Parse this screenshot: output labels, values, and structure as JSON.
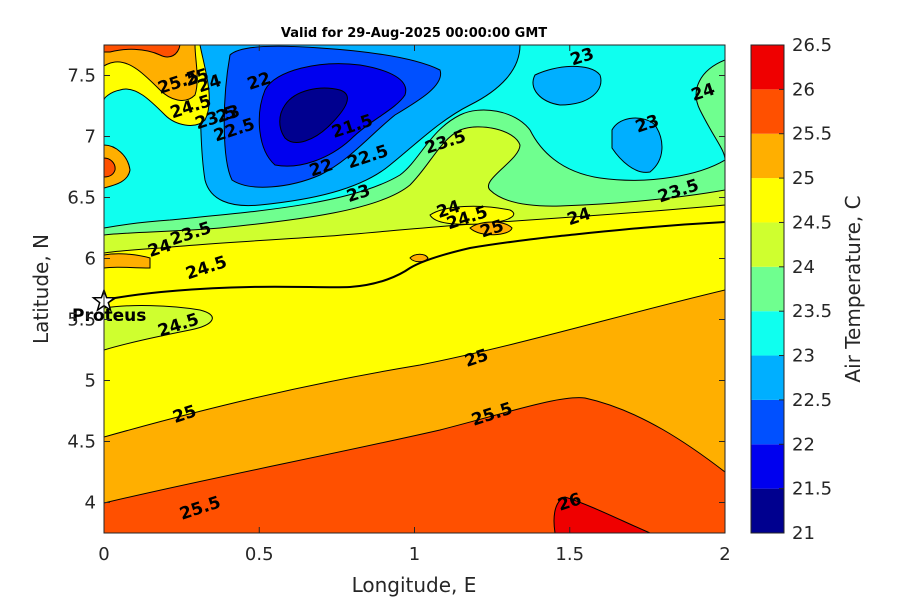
{
  "chart_data": {
    "type": "contour",
    "title": "Valid for 29-Aug-2025 00:00:00 GMT",
    "xlabel": "Longitude, E",
    "ylabel": "Latitude, N",
    "colorbar_label": "Air Temperature, C",
    "xlim": [
      0,
      2
    ],
    "ylim": [
      3.75,
      7.75
    ],
    "x_ticks": [
      0,
      0.5,
      1,
      1.5,
      2
    ],
    "x_tick_labels": [
      "0",
      "0.5",
      "1",
      "1.5",
      "2"
    ],
    "y_ticks": [
      4,
      4.5,
      5,
      5.5,
      6,
      6.5,
      7,
      7.5
    ],
    "y_tick_labels": [
      "4",
      "4.5",
      "5",
      "5.5",
      "6",
      "6.5",
      "7",
      "7.5"
    ],
    "levels": [
      21,
      21.5,
      22,
      22.5,
      23,
      23.5,
      24,
      24.5,
      25,
      25.5,
      26,
      26.5
    ],
    "level_labels": [
      "21",
      "21.5",
      "22",
      "22.5",
      "23",
      "23.5",
      "24",
      "24.5",
      "25",
      "25.5",
      "26",
      "26.5"
    ],
    "colormap": [
      "#00008F",
      "#0000EF",
      "#0050FF",
      "#00AFFF",
      "#0FFFEF",
      "#6FFF8F",
      "#CFFF2F",
      "#FFFF00",
      "#FFAF00",
      "#FF5000",
      "#EF0000",
      "#AF0000"
    ],
    "grid": false,
    "marker": {
      "name": "Proteus",
      "lon": 0.0,
      "lat": 5.65,
      "symbol": "star"
    },
    "contour_labels": [
      {
        "text": "25.5",
        "lon": 0.24,
        "lat": 7.44
      },
      {
        "text": "25",
        "lon": 0.3,
        "lat": 7.48
      },
      {
        "text": "24",
        "lon": 0.34,
        "lat": 7.43
      },
      {
        "text": "24.5",
        "lon": 0.28,
        "lat": 7.24
      },
      {
        "text": "23.5",
        "lon": 0.36,
        "lat": 7.15
      },
      {
        "text": "23",
        "lon": 0.4,
        "lat": 7.18
      },
      {
        "text": "22.5",
        "lon": 0.42,
        "lat": 7.05
      },
      {
        "text": "22",
        "lon": 0.5,
        "lat": 7.45
      },
      {
        "text": "21.5",
        "lon": 0.8,
        "lat": 7.08
      },
      {
        "text": "22",
        "lon": 0.7,
        "lat": 6.74
      },
      {
        "text": "22.5",
        "lon": 0.85,
        "lat": 6.83
      },
      {
        "text": "23",
        "lon": 0.82,
        "lat": 6.53
      },
      {
        "text": "23.5",
        "lon": 1.1,
        "lat": 6.95
      },
      {
        "text": "23",
        "lon": 1.54,
        "lat": 7.65
      },
      {
        "text": "23",
        "lon": 1.75,
        "lat": 7.1
      },
      {
        "text": "24",
        "lon": 1.93,
        "lat": 7.36
      },
      {
        "text": "23.5",
        "lon": 1.85,
        "lat": 6.55
      },
      {
        "text": "24",
        "lon": 1.11,
        "lat": 6.4
      },
      {
        "text": "24.5",
        "lon": 1.17,
        "lat": 6.33
      },
      {
        "text": "25",
        "lon": 1.25,
        "lat": 6.24
      },
      {
        "text": "24",
        "lon": 1.53,
        "lat": 6.34
      },
      {
        "text": "23.5",
        "lon": 0.28,
        "lat": 6.2
      },
      {
        "text": "24",
        "lon": 0.18,
        "lat": 6.08
      },
      {
        "text": "24.5",
        "lon": 0.33,
        "lat": 5.92
      },
      {
        "text": "24.5",
        "lon": 0.24,
        "lat": 5.45
      },
      {
        "text": "25",
        "lon": 1.2,
        "lat": 5.18
      },
      {
        "text": "25",
        "lon": 0.26,
        "lat": 4.72
      },
      {
        "text": "25.5",
        "lon": 1.25,
        "lat": 4.72
      },
      {
        "text": "25.5",
        "lon": 0.31,
        "lat": 3.95
      },
      {
        "text": "26",
        "lon": 1.5,
        "lat": 4.0
      }
    ]
  }
}
